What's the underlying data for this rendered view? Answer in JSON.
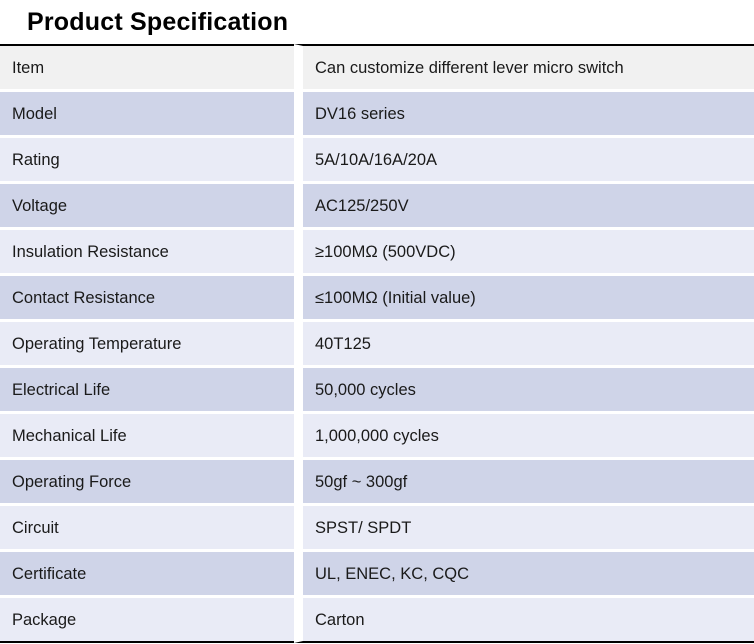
{
  "title": "Product Specification",
  "colors": {
    "row_gray": "#f1f1f1",
    "row_lavender_dark": "#cfd4e8",
    "row_lavender_light": "#e9ebf6",
    "border_black": "#000000",
    "text": "#1a1a1a"
  },
  "table": {
    "columns": [
      "label",
      "value"
    ],
    "rows": [
      {
        "label": "Item",
        "value": "Can customize different lever micro switch",
        "tone": "gray"
      },
      {
        "label": "Model",
        "value": "DV16 series",
        "tone": "dark"
      },
      {
        "label": "Rating",
        "value": "5A/10A/16A/20A",
        "tone": "light"
      },
      {
        "label": "Voltage",
        "value": "AC125/250V",
        "tone": "dark"
      },
      {
        "label": "Insulation Resistance",
        "value": "≥100MΩ (500VDC)",
        "tone": "light"
      },
      {
        "label": "Contact Resistance",
        "value": "≤100MΩ (Initial value)",
        "tone": "dark"
      },
      {
        "label": "Operating Temperature",
        "value": "40T125",
        "tone": "light"
      },
      {
        "label": "Electrical Life",
        "value": "50,000 cycles",
        "tone": "dark"
      },
      {
        "label": "Mechanical Life",
        "value": "1,000,000 cycles",
        "tone": "light"
      },
      {
        "label": "Operating Force",
        "value": "50gf ~ 300gf",
        "tone": "dark"
      },
      {
        "label": "Circuit",
        "value": "SPST/ SPDT",
        "tone": "light"
      },
      {
        "label": "Certificate",
        "value": "UL, ENEC, KC, CQC",
        "tone": "dark"
      },
      {
        "label": "Package",
        "value": "Carton",
        "tone": "light"
      }
    ]
  }
}
